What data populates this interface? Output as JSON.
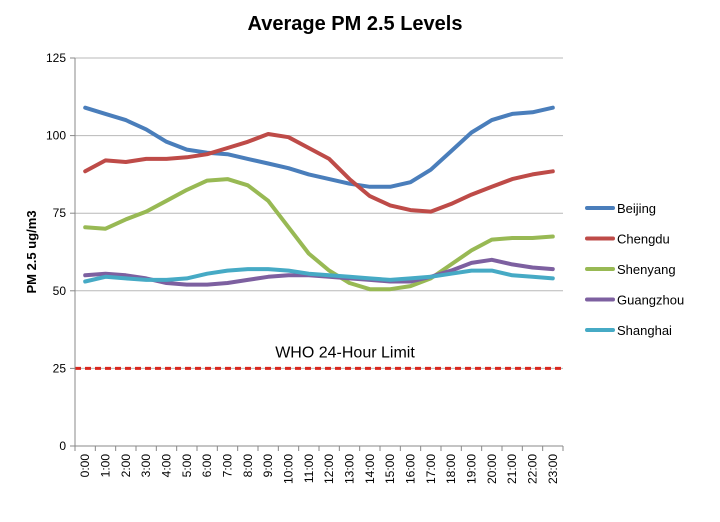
{
  "chart_data": {
    "type": "line",
    "title": "Average PM 2.5 Levels",
    "xlabel": "",
    "ylabel": "PM 2.5 ug/m3",
    "ylim": [
      0,
      125
    ],
    "yticks": [
      0,
      25,
      50,
      75,
      100,
      125
    ],
    "grid": true,
    "legend_position": "right",
    "categories": [
      "0:00",
      "1:00",
      "2:00",
      "3:00",
      "4:00",
      "5:00",
      "6:00",
      "7:00",
      "8:00",
      "9:00",
      "10:00",
      "11:00",
      "12:00",
      "13:00",
      "14:00",
      "15:00",
      "16:00",
      "17:00",
      "18:00",
      "19:00",
      "20:00",
      "21:00",
      "22:00",
      "23:00"
    ],
    "series": [
      {
        "name": "Beijing",
        "color": "#4a7ebb",
        "values": [
          109,
          107,
          105,
          102,
          98,
          95.5,
          94.5,
          94,
          92.5,
          91,
          89.5,
          87.5,
          86,
          84.5,
          83.5,
          83.5,
          85,
          89,
          95,
          101,
          105,
          107,
          107.5,
          109
        ]
      },
      {
        "name": "Chengdu",
        "color": "#be4b48",
        "values": [
          88.5,
          92,
          91.5,
          92.5,
          92.5,
          93,
          94,
          96,
          98,
          100.5,
          99.5,
          96,
          92.5,
          86,
          80.5,
          77.5,
          76,
          75.5,
          78,
          81,
          83.5,
          86,
          87.5,
          88.5
        ]
      },
      {
        "name": "Shenyang",
        "color": "#98b954",
        "values": [
          70.5,
          70,
          73,
          75.5,
          79,
          82.5,
          85.5,
          86,
          84,
          79,
          70.5,
          62,
          56.5,
          52.5,
          50.5,
          50.5,
          51.5,
          54,
          58.5,
          63,
          66.5,
          67,
          67,
          67.5
        ]
      },
      {
        "name": "Guangzhou",
        "color": "#7d60a0",
        "values": [
          55,
          55.5,
          55,
          54,
          52.5,
          52,
          52,
          52.5,
          53.5,
          54.5,
          55,
          55,
          54.5,
          54,
          53.5,
          53,
          53,
          54.5,
          56.5,
          59,
          60,
          58.5,
          57.5,
          57
        ]
      },
      {
        "name": "Shanghai",
        "color": "#46aac5",
        "values": [
          53,
          54.5,
          54,
          53.5,
          53.5,
          54,
          55.5,
          56.5,
          57,
          57,
          56.5,
          55.5,
          55,
          54.5,
          54,
          53.5,
          54,
          54.5,
          55.5,
          56.5,
          56.5,
          55,
          54.5,
          54
        ]
      }
    ],
    "reference_line": {
      "label": "WHO 24-Hour Limit",
      "value": 25,
      "color": "#d9281e"
    }
  }
}
